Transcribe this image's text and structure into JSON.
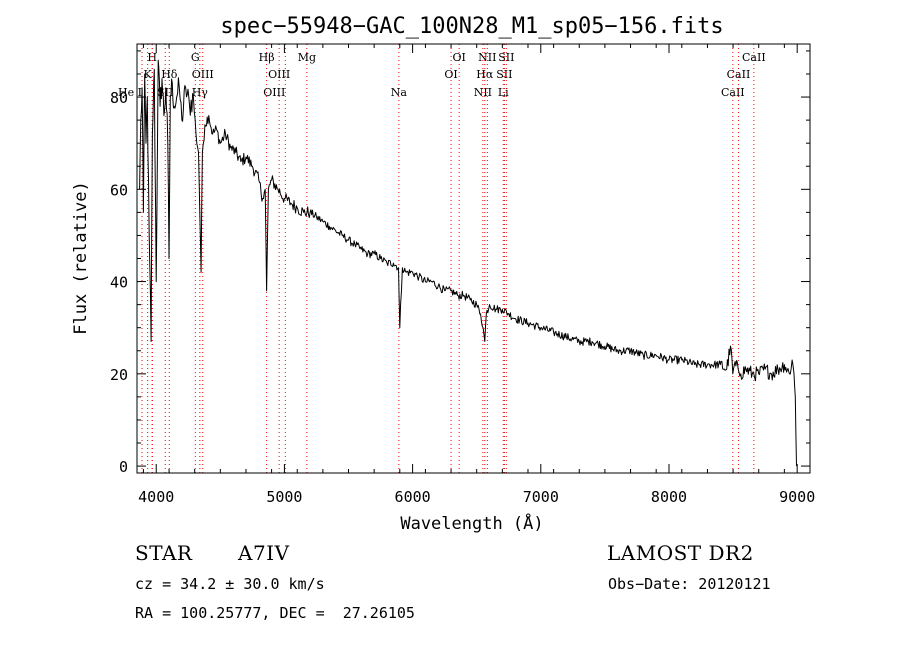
{
  "chart_data": {
    "type": "line",
    "title": "spec−55948−GAC_100N28_M1_sp05−156.fits",
    "xlabel": "Wavelength (Å)",
    "ylabel": "Flux (relative)",
    "xlim": [
      3850,
      9100
    ],
    "ylim": [
      -1.5,
      91.5
    ],
    "xticks": [
      4000,
      5000,
      6000,
      7000,
      8000,
      9000
    ],
    "yticks": [
      0,
      20,
      40,
      60,
      80
    ],
    "grid": false,
    "legend": "none",
    "line_color": "#000000",
    "marker_color": "#ff0000",
    "series": [
      {
        "name": "",
        "x": [
          3870,
          3880,
          3890,
          3900,
          3910,
          3920,
          3930,
          3945,
          3960,
          3970,
          3985,
          4000,
          4015,
          4030,
          4045,
          4060,
          4075,
          4090,
          4100,
          4110,
          4125,
          4140,
          4160,
          4180,
          4200,
          4230,
          4260,
          4290,
          4310,
          4330,
          4340,
          4350,
          4360,
          4380,
          4410,
          4440,
          4470,
          4500,
          4540,
          4580,
          4620,
          4660,
          4700,
          4750,
          4800,
          4830,
          4850,
          4861,
          4875,
          4900,
          4950,
          5000,
          5050,
          5100,
          5150,
          5200,
          5250,
          5300,
          5350,
          5400,
          5450,
          5500,
          5550,
          5600,
          5650,
          5700,
          5750,
          5800,
          5850,
          5890,
          5900,
          5920,
          5950,
          6000,
          6050,
          6100,
          6150,
          6200,
          6250,
          6300,
          6350,
          6400,
          6450,
          6500,
          6530,
          6550,
          6563,
          6575,
          6600,
          6650,
          6700,
          6750,
          6800,
          6900,
          7000,
          7100,
          7200,
          7300,
          7400,
          7500,
          7600,
          7700,
          7800,
          7900,
          8000,
          8100,
          8200,
          8300,
          8400,
          8450,
          8480,
          8498,
          8510,
          8540,
          8560,
          8600,
          8650,
          8700,
          8750,
          8800,
          8850,
          8900,
          8940,
          8960,
          8975,
          8985,
          8995
        ],
        "y": [
          60,
          75,
          82,
          55,
          85,
          70,
          80,
          50,
          27,
          72,
          86,
          40,
          88,
          78,
          84,
          76,
          82,
          70,
          45,
          80,
          83,
          78,
          80,
          82,
          75,
          82,
          78,
          80,
          72,
          68,
          55,
          42,
          68,
          74,
          76,
          72,
          73,
          70,
          72,
          69,
          68,
          66,
          67,
          65,
          62,
          58,
          60,
          38,
          60,
          62,
          60,
          58,
          57,
          56,
          55,
          55,
          54,
          53,
          52,
          51,
          50,
          49,
          48,
          47,
          46,
          46,
          45,
          44,
          44,
          43,
          30,
          43,
          42,
          42,
          41,
          40,
          40,
          39,
          38,
          38,
          37,
          37,
          36,
          35,
          33,
          30,
          27,
          33,
          35,
          34,
          34,
          33,
          32,
          31,
          30,
          29,
          28,
          27,
          27,
          26,
          25,
          25,
          24,
          24,
          23,
          23,
          22,
          22,
          22,
          21,
          26,
          20,
          22,
          21,
          20,
          21,
          20,
          20,
          21,
          20,
          21,
          22,
          20,
          23,
          20,
          15,
          0
        ]
      }
    ],
    "line_markers": [
      {
        "x": 3889,
        "label": "He I",
        "row": 2,
        "anchor": "end"
      },
      {
        "x": 3933,
        "label": "K",
        "row": 1,
        "anchor": "middle"
      },
      {
        "x": 3968,
        "label": "H",
        "row": 0,
        "anchor": "middle"
      },
      {
        "x": 3970,
        "label": "Hε",
        "row": -1,
        "anchor": "middle"
      },
      {
        "x": 4070,
        "label": "SII",
        "row": 2,
        "anchor": "middle"
      },
      {
        "x": 4102,
        "label": "Hδ",
        "row": 1,
        "anchor": "middle"
      },
      {
        "x": 4305,
        "label": "G",
        "row": 0,
        "anchor": "middle"
      },
      {
        "x": 4340,
        "label": "Hγ",
        "row": 2,
        "anchor": "middle"
      },
      {
        "x": 4363,
        "label": "OIII",
        "row": 1,
        "anchor": "middle"
      },
      {
        "x": 4861,
        "label": "Hβ",
        "row": 0,
        "anchor": "middle"
      },
      {
        "x": 4959,
        "label": "OIII",
        "row": 1,
        "anchor": "middle"
      },
      {
        "x": 5007,
        "label": "OIII",
        "row": 2,
        "anchor": "end"
      },
      {
        "x": 5175,
        "label": "Mg",
        "row": 0,
        "anchor": "middle"
      },
      {
        "x": 5893,
        "label": "Na",
        "row": 2,
        "anchor": "middle"
      },
      {
        "x": 6300,
        "label": "OI",
        "row": 1,
        "anchor": "middle"
      },
      {
        "x": 6363,
        "label": "OI",
        "row": 0,
        "anchor": "middle"
      },
      {
        "x": 6548,
        "label": "NII",
        "row": 2,
        "anchor": "middle"
      },
      {
        "x": 6563,
        "label": "Hα",
        "row": 1,
        "anchor": "middle"
      },
      {
        "x": 6583,
        "label": "NII",
        "row": 0,
        "anchor": "middle"
      },
      {
        "x": 6707,
        "label": "Li",
        "row": 2,
        "anchor": "middle"
      },
      {
        "x": 6716,
        "label": "SII",
        "row": 1,
        "anchor": "middle"
      },
      {
        "x": 6731,
        "label": "SII",
        "row": 0,
        "anchor": "middle"
      },
      {
        "x": 8498,
        "label": "CaII",
        "row": 2,
        "anchor": "middle"
      },
      {
        "x": 8542,
        "label": "CaII",
        "row": 1,
        "anchor": "middle"
      },
      {
        "x": 8662,
        "label": "CaII",
        "row": 0,
        "anchor": "middle"
      }
    ]
  },
  "info": {
    "object_class": "STAR",
    "subclass": "A7IV",
    "survey": "LAMOST DR2",
    "velocity": "cz = 34.2 ± 30.0 km/s",
    "obs_date": "Obs−Date: 20120121",
    "coords": "RA = 100.25777, DEC =  27.26105"
  }
}
